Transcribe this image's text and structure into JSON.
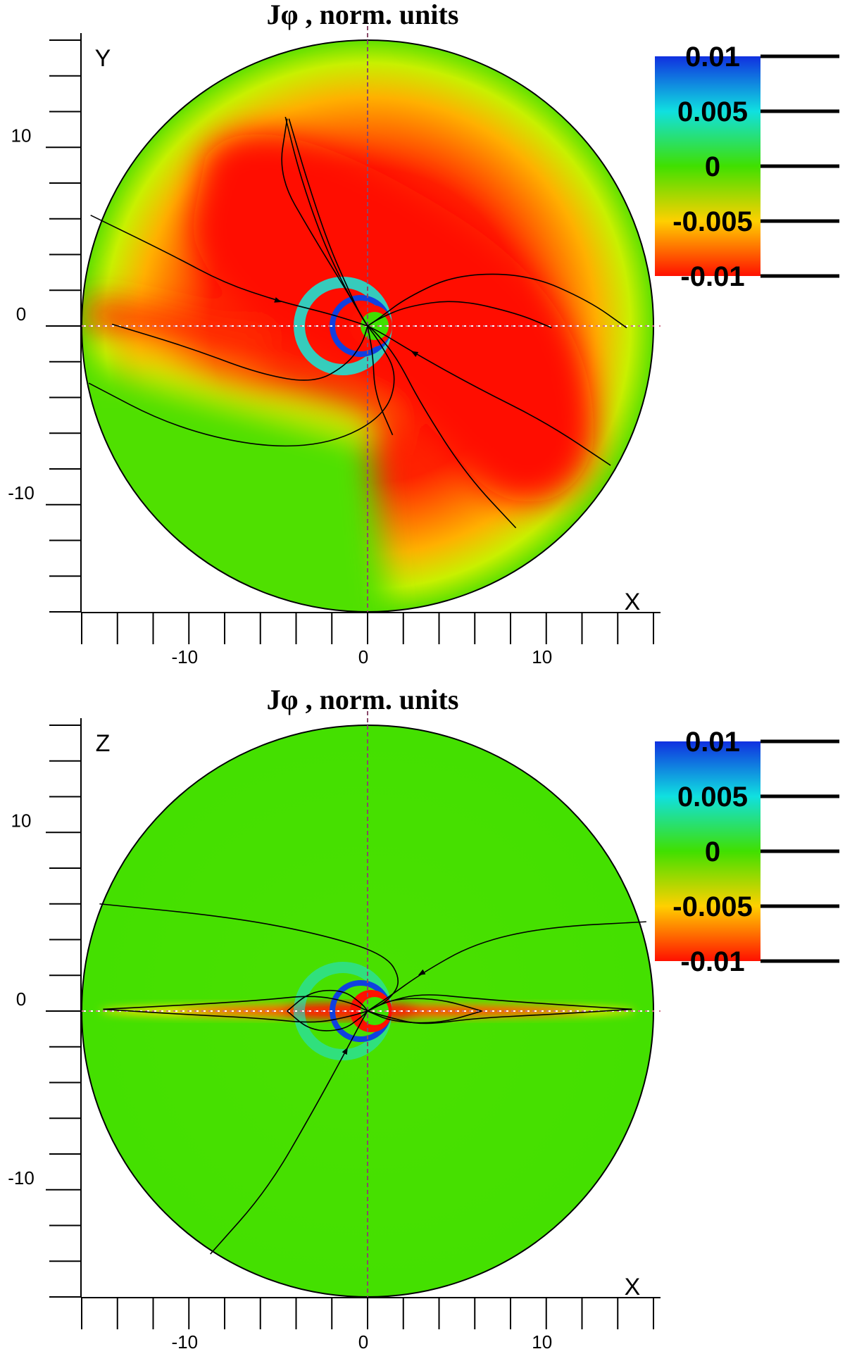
{
  "chart_data": [
    {
      "type": "heatmap",
      "title": "Jφ , norm. units",
      "xlabel": "X",
      "ylabel": "Y",
      "xlim": [
        -16,
        16
      ],
      "ylim": [
        -16,
        16
      ],
      "x_ticks": [
        -10,
        0,
        10
      ],
      "y_ticks": [
        -10,
        0,
        10
      ],
      "x_tick_labels": [
        "-10",
        "0",
        "10"
      ],
      "y_tick_labels": [
        "-10",
        "0",
        "10"
      ],
      "domain": "disk of radius 16",
      "colorbar": {
        "values": [
          0.01,
          0.005,
          0,
          -0.005,
          -0.01
        ],
        "labels": [
          "0.01",
          "0.005",
          "0",
          "-0.005",
          "-0.01"
        ],
        "colors": [
          "#1030e0",
          "#10e0e0",
          "#40e000",
          "#ffd000",
          "#ff1000"
        ],
        "placement": "top-right"
      },
      "field_lines": [
        [
          [
            -15.5,
            6.2
          ],
          [
            -11,
            4
          ],
          [
            -8,
            2.4
          ],
          [
            -5,
            1.4
          ],
          [
            -2.6,
            0.8
          ],
          [
            -1.2,
            0.4
          ],
          [
            0,
            0
          ]
        ],
        [
          [
            -14.3,
            0.1
          ],
          [
            -10,
            -1.2
          ],
          [
            -6,
            -2.7
          ],
          [
            -3,
            -3.2
          ],
          [
            -1.2,
            -2.2
          ],
          [
            -0.3,
            -1
          ],
          [
            0,
            0
          ]
        ],
        [
          [
            -15.6,
            -3.2
          ],
          [
            -11,
            -5.6
          ],
          [
            -6,
            -6.8
          ],
          [
            -2,
            -6.6
          ],
          [
            1,
            -5
          ],
          [
            1.7,
            -2.7
          ],
          [
            0.6,
            -0.8
          ],
          [
            0,
            0
          ]
        ],
        [
          [
            -4.6,
            11.7
          ],
          [
            -3.8,
            8.5
          ],
          [
            -2.6,
            5
          ],
          [
            -1.4,
            2.4
          ],
          [
            -0.5,
            0.8
          ],
          [
            0,
            0
          ]
        ],
        [
          [
            -4.4,
            11.6
          ],
          [
            -3.4,
            8.2
          ],
          [
            -2.2,
            4.6
          ],
          [
            -1.1,
            2.1
          ],
          [
            -0.4,
            0.6
          ],
          [
            0,
            0
          ]
        ],
        [
          [
            -4.5,
            11.6
          ],
          [
            -5,
            8.4
          ],
          [
            -3.1,
            5.1
          ],
          [
            -1.2,
            2
          ],
          [
            -0.3,
            0.5
          ],
          [
            0,
            0
          ]
        ],
        [
          [
            14.5,
            -0.1
          ],
          [
            12.4,
            1.4
          ],
          [
            9,
            2.9
          ],
          [
            5,
            2.9
          ],
          [
            2.2,
            1.6
          ],
          [
            0.6,
            0.4
          ],
          [
            0,
            0
          ]
        ],
        [
          [
            10.3,
            -0.1
          ],
          [
            8.4,
            0.7
          ],
          [
            5,
            1.5
          ],
          [
            2.2,
            1.1
          ],
          [
            0.6,
            0.4
          ],
          [
            0,
            0
          ]
        ],
        [
          [
            13.6,
            -7.8
          ],
          [
            10,
            -5.4
          ],
          [
            6,
            -3.4
          ],
          [
            2.6,
            -1.5
          ],
          [
            0.8,
            -0.4
          ],
          [
            0,
            0
          ]
        ],
        [
          [
            8.3,
            -11.3
          ],
          [
            5.5,
            -8.3
          ],
          [
            3,
            -4.4
          ],
          [
            1.6,
            -1.7
          ],
          [
            0.4,
            -0.3
          ],
          [
            0,
            0
          ]
        ],
        [
          [
            1.4,
            -6.1
          ],
          [
            0.4,
            -3.8
          ],
          [
            0.3,
            -1.6
          ],
          [
            0,
            0
          ]
        ]
      ]
    },
    {
      "type": "heatmap",
      "title": "Jφ , norm. units",
      "xlabel": "X",
      "ylabel": "Z",
      "xlim": [
        -16,
        16
      ],
      "ylim": [
        -16,
        16
      ],
      "x_ticks": [
        -10,
        0,
        10
      ],
      "y_ticks": [
        -10,
        0,
        10
      ],
      "x_tick_labels": [
        "-10",
        "0",
        "10"
      ],
      "y_tick_labels": [
        "-10",
        "0",
        "10"
      ],
      "domain": "disk of radius 16",
      "colorbar": {
        "values": [
          0.01,
          0.005,
          0,
          -0.005,
          -0.01
        ],
        "labels": [
          "0.01",
          "0.005",
          "0",
          "-0.005",
          "-0.01"
        ],
        "colors": [
          "#1030e0",
          "#10e0e0",
          "#40e000",
          "#ffd000",
          "#ff1000"
        ],
        "placement": "top-right"
      },
      "field_lines": [
        [
          [
            -15,
            6
          ],
          [
            -8,
            5.3
          ],
          [
            -3,
            4.4
          ],
          [
            1,
            3.2
          ],
          [
            1.9,
            1.7
          ],
          [
            1.2,
            0.6
          ],
          [
            0,
            0
          ]
        ],
        [
          [
            15.6,
            5
          ],
          [
            10,
            4.7
          ],
          [
            6,
            3.8
          ],
          [
            3,
            2.1
          ],
          [
            1.2,
            0.8
          ],
          [
            0,
            0
          ]
        ],
        [
          [
            -8.8,
            -13.6
          ],
          [
            -5.6,
            -10
          ],
          [
            -3,
            -5.5
          ],
          [
            -1.2,
            -2.2
          ],
          [
            -0.3,
            -0.5
          ],
          [
            0,
            0
          ]
        ],
        [
          [
            -14.8,
            0.1
          ],
          [
            -10,
            0.35
          ],
          [
            -6,
            0.6
          ],
          [
            -3,
            0.9
          ],
          [
            -1,
            0.5
          ],
          [
            0,
            0
          ]
        ],
        [
          [
            -14.8,
            0.1
          ],
          [
            -10,
            -0.2
          ],
          [
            -6,
            -0.4
          ],
          [
            -3,
            -0.7
          ],
          [
            -1,
            -0.3
          ],
          [
            0,
            0
          ]
        ],
        [
          [
            14.8,
            0.1
          ],
          [
            10,
            0.4
          ],
          [
            6,
            0.7
          ],
          [
            3,
            1
          ],
          [
            1,
            0.5
          ],
          [
            0,
            0
          ]
        ],
        [
          [
            14.8,
            0.1
          ],
          [
            10,
            -0.2
          ],
          [
            6,
            -0.4
          ],
          [
            3,
            -0.8
          ],
          [
            1,
            -0.3
          ],
          [
            0,
            0
          ]
        ],
        [
          [
            -4.5,
            0
          ],
          [
            -3.2,
            1.1
          ],
          [
            -1.4,
            1.2
          ],
          [
            -0.3,
            0.4
          ],
          [
            0,
            0
          ]
        ],
        [
          [
            -4.5,
            0
          ],
          [
            -3.2,
            -1.1
          ],
          [
            -1.4,
            -1.1
          ],
          [
            -0.3,
            -0.3
          ],
          [
            0,
            0
          ]
        ],
        [
          [
            6.4,
            0
          ],
          [
            4,
            0.7
          ],
          [
            1.4,
            0.7
          ],
          [
            0,
            0
          ]
        ],
        [
          [
            6.4,
            0
          ],
          [
            4,
            -0.7
          ],
          [
            1.4,
            -0.6
          ],
          [
            0,
            0
          ]
        ]
      ]
    }
  ]
}
